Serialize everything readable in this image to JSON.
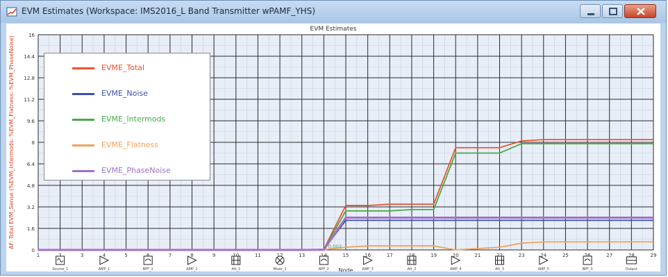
{
  "window": {
    "title": "EVM Estimates (Workspace: IMS2016_L Band Transmitter wPAMF_YHS)",
    "buttons": {
      "minimize": "minimize-icon",
      "maximize": "maximize-icon",
      "close": "close-icon"
    }
  },
  "chart_data": {
    "type": "line",
    "title": "EVM Estimates",
    "ylabel": "AF: Total EVM_Sense (%EVM_Intermods: %EVM_Flatness: %EVM_PhaseNoise)",
    "xlabel": "Node",
    "ylim": [
      0,
      16
    ],
    "yticks": [
      "16",
      "14.4",
      "12.8",
      "11.2",
      "9.6",
      "8",
      "6.4",
      "4.8",
      "3.2",
      "1.6",
      "0"
    ],
    "grid": true,
    "legend_position": "top-left",
    "x_tick_labels": [
      "1",
      "2",
      "3",
      "4",
      "5",
      "6",
      "7",
      "8",
      "9",
      "10",
      "11",
      "12",
      "13",
      "14",
      "15",
      "16",
      "17",
      "18",
      "19",
      "20",
      "21",
      "22",
      "23",
      "24",
      "25",
      "26",
      "27",
      "28",
      "29"
    ],
    "point_annotation": "0.002",
    "series": [
      {
        "name": "EVME_Total",
        "color": "#e8542e",
        "values": [
          0,
          0,
          0,
          0,
          0,
          0,
          0,
          0,
          0,
          0,
          0,
          0,
          0,
          0.05,
          3.3,
          3.3,
          3.4,
          3.4,
          3.4,
          7.6,
          7.6,
          7.6,
          8.1,
          8.2,
          8.2,
          8.2,
          8.2,
          8.2,
          8.2
        ]
      },
      {
        "name": "EVME_Noise",
        "color": "#3a4fae",
        "values": [
          0,
          0,
          0,
          0,
          0,
          0,
          0,
          0,
          0,
          0,
          0,
          0,
          0,
          0.03,
          2.2,
          2.2,
          2.2,
          2.2,
          2.2,
          2.2,
          2.2,
          2.2,
          2.2,
          2.2,
          2.2,
          2.2,
          2.2,
          2.2,
          2.2
        ]
      },
      {
        "name": "EVME_Intermods",
        "color": "#4aa84a",
        "values": [
          0,
          0,
          0,
          0,
          0,
          0,
          0,
          0,
          0,
          0,
          0,
          0,
          0,
          0.04,
          2.9,
          2.9,
          2.9,
          3.0,
          3.0,
          7.2,
          7.2,
          7.2,
          7.9,
          7.9,
          7.9,
          7.9,
          7.9,
          7.9,
          7.9
        ]
      },
      {
        "name": "EVME_Flatness",
        "color": "#f0a25a",
        "values": [
          0,
          0,
          0,
          0,
          0,
          0,
          0,
          0,
          0,
          0,
          0,
          0,
          0,
          0.02,
          0.2,
          0.3,
          0.3,
          0.3,
          0.3,
          0.0,
          0.1,
          0.2,
          0.5,
          0.6,
          0.6,
          0.6,
          0.6,
          0.6,
          0.6
        ]
      },
      {
        "name": "EVME_PhaseNoise",
        "color": "#a070c8",
        "values": [
          0,
          0,
          0,
          0,
          0,
          0,
          0,
          0,
          0,
          0,
          0,
          0,
          0,
          0.01,
          2.4,
          2.4,
          2.4,
          2.4,
          2.4,
          2.4,
          2.4,
          2.4,
          2.4,
          2.4,
          2.4,
          2.4,
          2.4,
          2.4,
          2.4
        ]
      }
    ],
    "components": [
      {
        "label": "Source_1",
        "icon": "source-icon"
      },
      {
        "label": "AMP_1",
        "icon": "amplifier-icon"
      },
      {
        "label": "BPF_1",
        "icon": "filter-icon"
      },
      {
        "label": "AMP_2",
        "icon": "amplifier-icon"
      },
      {
        "label": "Att_1",
        "icon": "attenuator-icon"
      },
      {
        "label": "Mixer_1",
        "icon": "mixer-icon"
      },
      {
        "label": "BPF_2",
        "icon": "filter-icon"
      },
      {
        "label": "AMP_3",
        "icon": "amplifier-icon"
      },
      {
        "label": "Att_2",
        "icon": "attenuator-icon"
      },
      {
        "label": "AMP_4",
        "icon": "amplifier-icon"
      },
      {
        "label": "Att_3",
        "icon": "attenuator-icon"
      },
      {
        "label": "AMP_5",
        "icon": "amplifier-icon"
      },
      {
        "label": "BPF_3",
        "icon": "filter-icon"
      },
      {
        "label": "Output",
        "icon": "output-icon"
      }
    ]
  }
}
